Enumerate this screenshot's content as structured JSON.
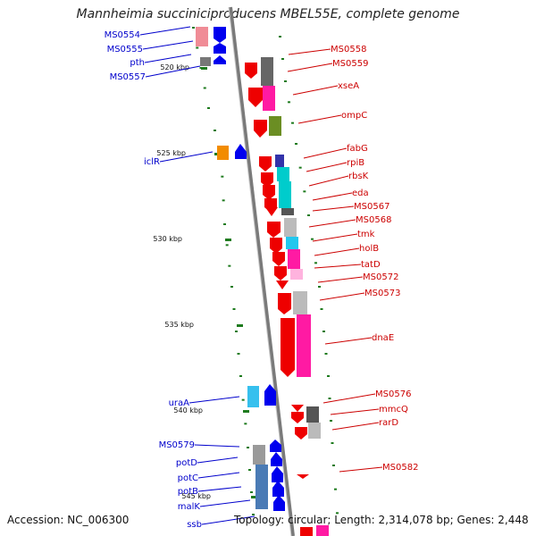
{
  "title": "Mannheimia succiniciproducens MBEL55E, complete genome",
  "footer": {
    "accession": "Accession: NC_006300",
    "stats": "Topology: circular; Length: 2,314,078 bp; Genes: 2,448"
  },
  "colors": {
    "backbone": "#7a7a7a",
    "forward_label": "#0000cc",
    "reverse_label": "#cc0000",
    "tick": "#1e7b1e"
  },
  "scale_ticks": [
    "520 kbp",
    "525 kbp",
    "530 kbp",
    "535 kbp",
    "540 kbp",
    "545 kbp"
  ],
  "forward_genes": [
    "MS0554",
    "MS0555",
    "pth",
    "MS0557",
    "iclR",
    "uraA",
    "MS0579",
    "potD",
    "potC",
    "potB",
    "malK",
    "ssb"
  ],
  "reverse_genes": [
    "MS0558",
    "MS0559",
    "xseA",
    "ompC",
    "fabG",
    "rpiB",
    "rbsK",
    "eda",
    "MS0567",
    "MS0568",
    "tmk",
    "holB",
    "tatD",
    "MS0572",
    "MS0573",
    "dnaE",
    "MS0576",
    "mmcQ",
    "rarD",
    "MS0582"
  ]
}
